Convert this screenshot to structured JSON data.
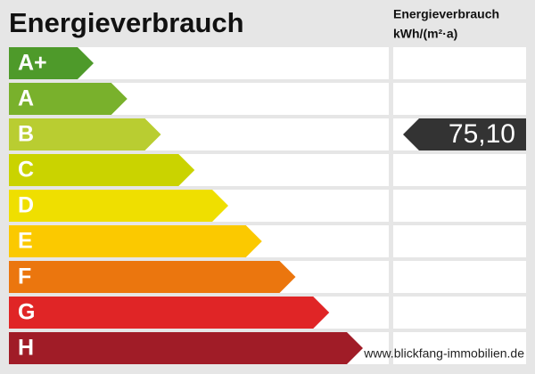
{
  "title": "Energieverbrauch",
  "unit_header": {
    "line1": "Energieverbrauch",
    "line2": "kWh/(m²·a)"
  },
  "classes": [
    {
      "label": "A+",
      "color": "#4e9a2a"
    },
    {
      "label": "A",
      "color": "#79b12c"
    },
    {
      "label": "B",
      "color": "#b9cd31",
      "value": "75,10"
    },
    {
      "label": "C",
      "color": "#cad300"
    },
    {
      "label": "D",
      "color": "#efdf00"
    },
    {
      "label": "E",
      "color": "#fbc900"
    },
    {
      "label": "F",
      "color": "#eb760e"
    },
    {
      "label": "G",
      "color": "#e02526"
    },
    {
      "label": "H",
      "color": "#a01c27"
    }
  ],
  "watermark": "www.blickfang-immobilien.de"
}
